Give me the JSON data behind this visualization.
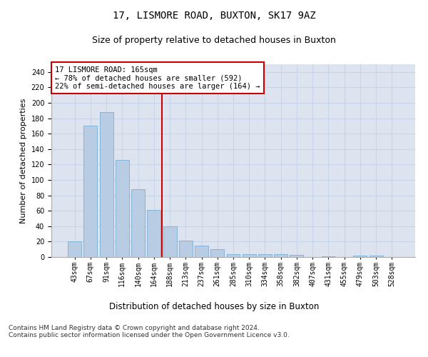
{
  "title1": "17, LISMORE ROAD, BUXTON, SK17 9AZ",
  "title2": "Size of property relative to detached houses in Buxton",
  "xlabel": "Distribution of detached houses by size in Buxton",
  "ylabel": "Number of detached properties",
  "categories": [
    "43sqm",
    "67sqm",
    "91sqm",
    "116sqm",
    "140sqm",
    "164sqm",
    "188sqm",
    "213sqm",
    "237sqm",
    "261sqm",
    "285sqm",
    "310sqm",
    "334sqm",
    "358sqm",
    "382sqm",
    "407sqm",
    "431sqm",
    "455sqm",
    "479sqm",
    "503sqm",
    "528sqm"
  ],
  "values": [
    20,
    170,
    188,
    126,
    88,
    61,
    40,
    21,
    15,
    10,
    4,
    4,
    4,
    4,
    3,
    0,
    1,
    0,
    2,
    2,
    0
  ],
  "bar_color": "#b8cce4",
  "bar_edge_color": "#7bafd4",
  "ref_line_index": 5,
  "ref_line_color": "#cc0000",
  "annotation_text": "17 LISMORE ROAD: 165sqm\n← 78% of detached houses are smaller (592)\n22% of semi-detached houses are larger (164) →",
  "annotation_box_color": "#ffffff",
  "annotation_box_edge_color": "#cc0000",
  "ylim": [
    0,
    250
  ],
  "yticks": [
    0,
    20,
    40,
    60,
    80,
    100,
    120,
    140,
    160,
    180,
    200,
    220,
    240
  ],
  "grid_color": "#c8d4e8",
  "background_color": "#dde4f0",
  "footer_text": "Contains HM Land Registry data © Crown copyright and database right 2024.\nContains public sector information licensed under the Open Government Licence v3.0.",
  "title1_fontsize": 10,
  "title2_fontsize": 9,
  "xlabel_fontsize": 8.5,
  "ylabel_fontsize": 8,
  "tick_fontsize": 7,
  "annotation_fontsize": 7.5,
  "footer_fontsize": 6.5
}
